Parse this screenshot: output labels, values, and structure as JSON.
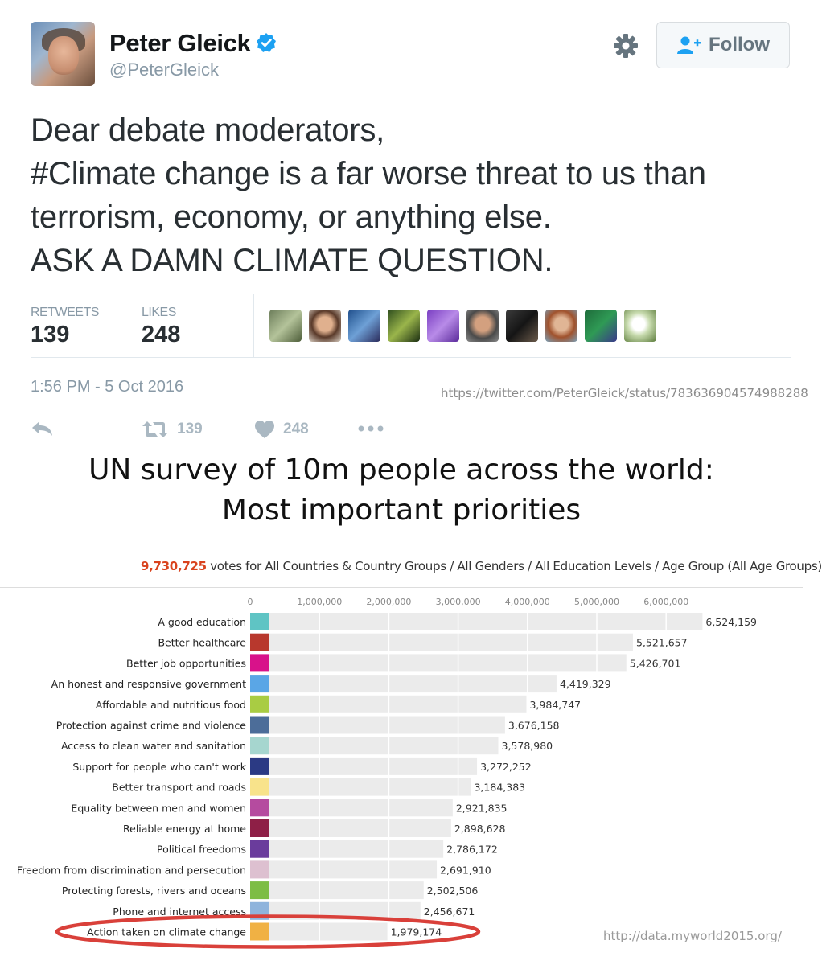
{
  "profile": {
    "display_name": "Peter Gleick",
    "handle": "@PeterGleick",
    "follow_label": "Follow"
  },
  "tweet": {
    "lines": [
      "Dear debate moderators,",
      "#Climate change is a far worse threat to us than",
      "terrorism, economy, or anything else.",
      "ASK A DAMN CLIMATE QUESTION."
    ],
    "retweets_label": "RETWEETS",
    "retweets_count": "139",
    "likes_label": "LIKES",
    "likes_count": "248",
    "timestamp": "1:56 PM - 5 Oct 2016",
    "url": "https://twitter.com/PeterGleick/status/783636904574988288",
    "action_retweet_count": "139",
    "action_like_count": "248"
  },
  "icons": {
    "verified": "verified-badge-icon",
    "settings": "gear-icon",
    "follow": "add-user-icon",
    "reply": "reply-icon",
    "retweet": "retweet-icon",
    "like": "heart-icon",
    "more": "more-dots-icon"
  },
  "colors": {
    "twitter_blue": "#1da1f2",
    "muted": "#8899a6",
    "votes_accent": "#d9431e",
    "circle": "#d9403a"
  },
  "survey": {
    "title_line1": "UN survey of 10m people across the world:",
    "title_line2": "Most important priorities",
    "votes_total": "9,730,725",
    "votes_desc": " votes for All Countries & Country Groups / All Genders / All Education Levels / Age Group (All Age Groups)",
    "source_url": "http://data.myworld2015.org/"
  },
  "chart_data": {
    "type": "bar",
    "orientation": "horizontal",
    "xlim": [
      0,
      6800000
    ],
    "ticks": [
      0,
      1000000,
      2000000,
      3000000,
      4000000,
      5000000,
      6000000
    ],
    "tick_labels": [
      "0",
      "1,000,000",
      "2,000,000",
      "3,000,000",
      "4,000,000",
      "5,000,000",
      "6,000,000"
    ],
    "grid": true,
    "highlighted_category": "Action taken on climate change",
    "bars": [
      {
        "label": "A good education",
        "value": 6524159,
        "value_label": "6,524,159",
        "color": "#5fc4c4"
      },
      {
        "label": "Better healthcare",
        "value": 5521657,
        "value_label": "5,521,657",
        "color": "#b8382d"
      },
      {
        "label": "Better job opportunities",
        "value": 5426701,
        "value_label": "5,426,701",
        "color": "#d8128a"
      },
      {
        "label": "An honest and responsive government",
        "value": 4419329,
        "value_label": "4,419,329",
        "color": "#5aa6e6"
      },
      {
        "label": "Affordable and nutritious food",
        "value": 3984747,
        "value_label": "3,984,747",
        "color": "#a9cc43"
      },
      {
        "label": "Protection against crime and violence",
        "value": 3676158,
        "value_label": "3,676,158",
        "color": "#4c6d99"
      },
      {
        "label": "Access to clean water and sanitation",
        "value": 3578980,
        "value_label": "3,578,980",
        "color": "#a6d6cf"
      },
      {
        "label": "Support for people who can't work",
        "value": 3272252,
        "value_label": "3,272,252",
        "color": "#2b3a84"
      },
      {
        "label": "Better transport and roads",
        "value": 3184383,
        "value_label": "3,184,383",
        "color": "#f8e38b"
      },
      {
        "label": "Equality between men and women",
        "value": 2921835,
        "value_label": "2,921,835",
        "color": "#b54b9f"
      },
      {
        "label": "Reliable energy at home",
        "value": 2898628,
        "value_label": "2,898,628",
        "color": "#8e1f46"
      },
      {
        "label": "Political freedoms",
        "value": 2786172,
        "value_label": "2,786,172",
        "color": "#6a3c9c"
      },
      {
        "label": "Freedom from discrimination and persecution",
        "value": 2691910,
        "value_label": "2,691,910",
        "color": "#ddc0d0"
      },
      {
        "label": "Protecting forests, rivers and oceans",
        "value": 2502506,
        "value_label": "2,502,506",
        "color": "#7dbd45"
      },
      {
        "label": "Phone and internet access",
        "value": 2456671,
        "value_label": "2,456,671",
        "color": "#8fb4dc"
      },
      {
        "label": "Action taken on climate change",
        "value": 1979174,
        "value_label": "1,979,174",
        "color": "#f0b144"
      }
    ]
  }
}
